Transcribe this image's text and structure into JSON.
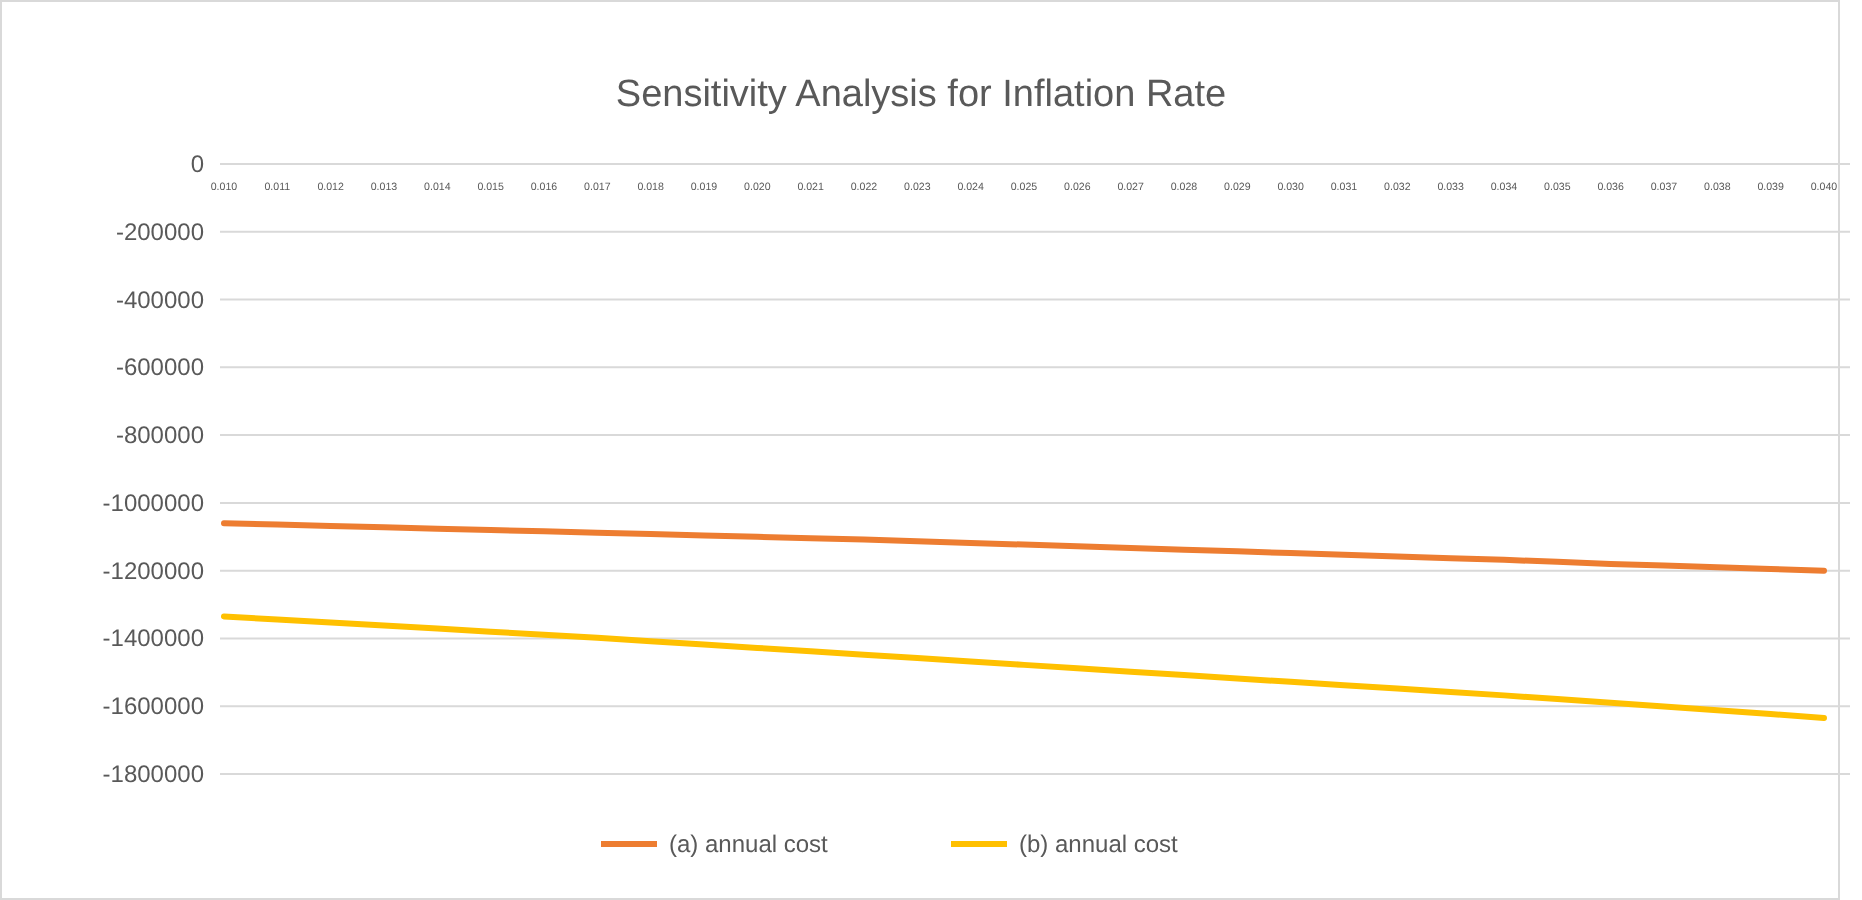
{
  "chart_data": {
    "type": "line",
    "title": "Sensitivity Analysis for Inflation Rate",
    "categories": [
      "0.010",
      "0.011",
      "0.012",
      "0.013",
      "0.014",
      "0.015",
      "0.016",
      "0.017",
      "0.018",
      "0.019",
      "0.020",
      "0.021",
      "0.022",
      "0.023",
      "0.024",
      "0.025",
      "0.026",
      "0.027",
      "0.028",
      "0.029",
      "0.030",
      "0.031",
      "0.032",
      "0.033",
      "0.034",
      "0.035",
      "0.036",
      "0.037",
      "0.038",
      "0.039",
      "0.040"
    ],
    "series": [
      {
        "name": "(a) annual cost",
        "color": "#ed7d31",
        "values": [
          -1060000,
          -1064000,
          -1068000,
          -1072000,
          -1076000,
          -1080000,
          -1084000,
          -1088000,
          -1092000,
          -1096000,
          -1100000,
          -1104000,
          -1108000,
          -1113000,
          -1118000,
          -1123000,
          -1128000,
          -1133000,
          -1138000,
          -1143000,
          -1148000,
          -1153000,
          -1158000,
          -1163000,
          -1168000,
          -1174000,
          -1180000,
          -1185000,
          -1190000,
          -1195000,
          -1200000
        ]
      },
      {
        "name": "(b) annual cost",
        "color": "#ffc000",
        "values": [
          -1335000,
          -1344000,
          -1353000,
          -1362000,
          -1371000,
          -1380000,
          -1389000,
          -1398000,
          -1408000,
          -1418000,
          -1428000,
          -1438000,
          -1448000,
          -1458000,
          -1468000,
          -1478000,
          -1488000,
          -1498000,
          -1508000,
          -1518000,
          -1528000,
          -1538000,
          -1548000,
          -1558000,
          -1568000,
          -1579000,
          -1590000,
          -1601000,
          -1612000,
          -1623000,
          -1635000
        ]
      }
    ],
    "ylim": [
      -1800000,
      0
    ],
    "yticks": [
      0,
      -200000,
      -400000,
      -600000,
      -800000,
      -1000000,
      -1200000,
      -1400000,
      -1600000,
      -1800000
    ],
    "grid": "y",
    "legend": "bottom",
    "marker": "none",
    "line_style": "solid"
  }
}
